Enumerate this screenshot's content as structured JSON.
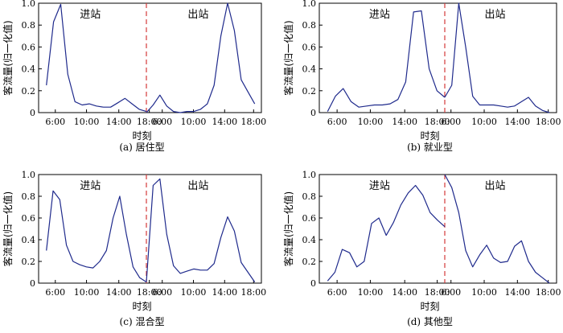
{
  "chart_data": [
    {
      "type": "line",
      "caption": "(a) 居住型",
      "ylabel": "客流量(归一化值)",
      "xlabel": "时刻",
      "ylim": [
        0,
        1.0
      ],
      "yticks": [
        "0",
        "0.2",
        "0.4",
        "0.6",
        "0.8",
        "1.0"
      ],
      "xticks": [
        "6:00",
        "10:00",
        "14:00",
        "18:00",
        "6:00",
        "10:00",
        "14:00",
        "18:00"
      ],
      "region_labels": [
        "进站",
        "出站"
      ],
      "series_color": "#1f2a8c",
      "divider_color": "#d43a3a",
      "entry_values": [
        0.25,
        0.83,
        0.99,
        0.35,
        0.1,
        0.07,
        0.08,
        0.06,
        0.05,
        0.05,
        0.09,
        0.13,
        0.08,
        0.03,
        0.01
      ],
      "exit_values": [
        0.0,
        0.07,
        0.16,
        0.06,
        0.01,
        0.0,
        0.01,
        0.01,
        0.03,
        0.08,
        0.25,
        0.7,
        1.0,
        0.75,
        0.3,
        0.19,
        0.08
      ]
    },
    {
      "type": "line",
      "caption": "(b) 就业型",
      "ylabel": "客流量(归一化值)",
      "xlabel": "时刻",
      "ylim": [
        0,
        1.0
      ],
      "yticks": [
        "0",
        "0.2",
        "0.4",
        "0.6",
        "0.8",
        "1.0"
      ],
      "xticks": [
        "6:00",
        "10:00",
        "14:00",
        "18:00",
        "6:00",
        "10:00",
        "14:00",
        "18:00"
      ],
      "region_labels": [
        "进站",
        "出站"
      ],
      "series_color": "#1f2a8c",
      "divider_color": "#d43a3a",
      "entry_values": [
        0.01,
        0.15,
        0.22,
        0.1,
        0.05,
        0.06,
        0.07,
        0.07,
        0.08,
        0.12,
        0.28,
        0.92,
        0.93,
        0.4,
        0.2,
        0.14
      ],
      "exit_values": [
        0.14,
        0.25,
        1.0,
        0.6,
        0.15,
        0.07,
        0.07,
        0.07,
        0.06,
        0.05,
        0.06,
        0.1,
        0.14,
        0.06,
        0.02,
        0.0
      ]
    },
    {
      "type": "line",
      "caption": "(c) 混合型",
      "ylabel": "客流量(归一化值)",
      "xlabel": "时刻",
      "ylim": [
        0,
        1.0
      ],
      "yticks": [
        "0",
        "0.2",
        "0.4",
        "0.6",
        "0.8",
        "1.0"
      ],
      "xticks": [
        "6:00",
        "10:00",
        "14:00",
        "18:00",
        "6:00",
        "10:00",
        "14:00",
        "18:00"
      ],
      "region_labels": [
        "进站",
        "出站"
      ],
      "series_color": "#1f2a8c",
      "divider_color": "#d43a3a",
      "entry_values": [
        0.3,
        0.85,
        0.77,
        0.35,
        0.2,
        0.17,
        0.15,
        0.14,
        0.2,
        0.3,
        0.6,
        0.8,
        0.45,
        0.15,
        0.05,
        0.01
      ],
      "exit_values": [
        0.01,
        0.9,
        0.96,
        0.45,
        0.16,
        0.09,
        0.11,
        0.13,
        0.12,
        0.12,
        0.18,
        0.42,
        0.61,
        0.48,
        0.19,
        0.1,
        0.01
      ]
    },
    {
      "type": "line",
      "caption": "(d) 其他型",
      "ylabel": "客流量(归一化值)",
      "xlabel": "时刻",
      "ylim": [
        0,
        1.0
      ],
      "yticks": [
        "0",
        "0.2",
        "0.4",
        "0.6",
        "0.8",
        "1.0"
      ],
      "xticks": [
        "6:00",
        "10:00",
        "14:00",
        "18:00",
        "6:00",
        "10:00",
        "14:00",
        "18:00"
      ],
      "region_labels": [
        "进站",
        "出站"
      ],
      "series_color": "#1f2a8c",
      "divider_color": "#d43a3a",
      "entry_values": [
        0.02,
        0.1,
        0.31,
        0.28,
        0.15,
        0.2,
        0.55,
        0.6,
        0.44,
        0.56,
        0.72,
        0.83,
        0.9,
        0.81,
        0.65,
        0.58,
        0.52
      ],
      "exit_values": [
        1.0,
        0.88,
        0.65,
        0.3,
        0.15,
        0.26,
        0.35,
        0.23,
        0.19,
        0.2,
        0.34,
        0.39,
        0.2,
        0.1,
        0.05,
        0.0
      ]
    }
  ]
}
